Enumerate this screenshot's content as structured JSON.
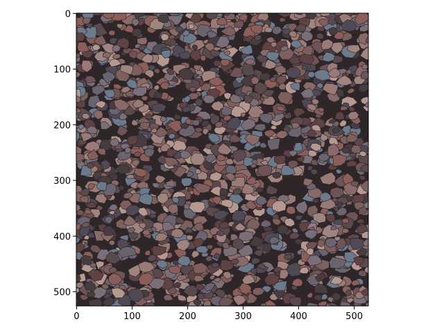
{
  "chart_data": {
    "type": "image",
    "xlim": [
      -0.5,
      525.5
    ],
    "ylim": [
      525.5,
      -0.5
    ],
    "xticks": [
      0,
      100,
      200,
      300,
      400,
      500
    ],
    "yticks": [
      0,
      100,
      200,
      300,
      400,
      500
    ]
  }
}
